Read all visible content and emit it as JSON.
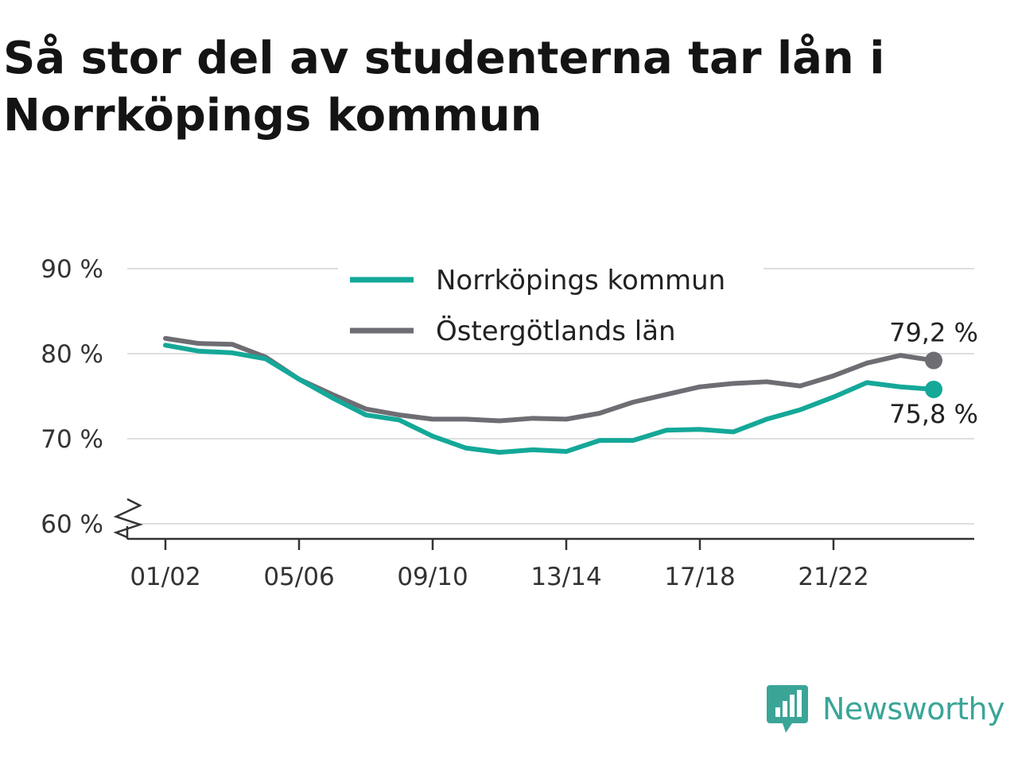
{
  "title": "Så stor del av studenterna tar lån i Norrköpings kommun",
  "brand": {
    "name": "Newsworthy",
    "icon": "newsworthy-logo-icon",
    "color": "#3aa597"
  },
  "chart_data": {
    "type": "line",
    "title": "Så stor del av studenterna tar lån i Norrköpings kommun",
    "x": [
      "01/02",
      "02/03",
      "03/04",
      "04/05",
      "05/06",
      "06/07",
      "07/08",
      "08/09",
      "09/10",
      "10/11",
      "11/12",
      "12/13",
      "13/14",
      "14/15",
      "15/16",
      "16/17",
      "17/18",
      "18/19",
      "19/20",
      "20/21",
      "21/22",
      "22/23",
      "23/24",
      "24/25"
    ],
    "x_tick_labels": [
      "01/02",
      "05/06",
      "09/10",
      "13/14",
      "17/18",
      "21/22"
    ],
    "y_tick_labels": [
      "60 %",
      "70 %",
      "80 %",
      "90 %"
    ],
    "y_ticks": [
      60,
      70,
      80,
      90
    ],
    "ylim": [
      58,
      92
    ],
    "y_axis_break": true,
    "grid": "horizontal",
    "legend_position": "top-center",
    "series": [
      {
        "name": "Norrköpings kommun",
        "color": "#14a898",
        "end_label": "75,8 %",
        "values": [
          81.0,
          80.3,
          80.1,
          79.4,
          77.0,
          74.8,
          72.8,
          72.2,
          70.3,
          68.9,
          68.4,
          68.7,
          68.5,
          69.8,
          69.8,
          71.0,
          71.1,
          70.8,
          72.3,
          73.4,
          74.9,
          76.6,
          76.1,
          75.8
        ]
      },
      {
        "name": "Östergötlands län",
        "color": "#6e6d73",
        "end_label": "79,2 %",
        "values": [
          81.8,
          81.2,
          81.1,
          79.6,
          77.0,
          75.2,
          73.5,
          72.8,
          72.3,
          72.3,
          72.1,
          72.4,
          72.3,
          73.0,
          74.3,
          75.2,
          76.1,
          76.5,
          76.7,
          76.2,
          77.4,
          78.9,
          79.8,
          79.2
        ]
      }
    ]
  }
}
